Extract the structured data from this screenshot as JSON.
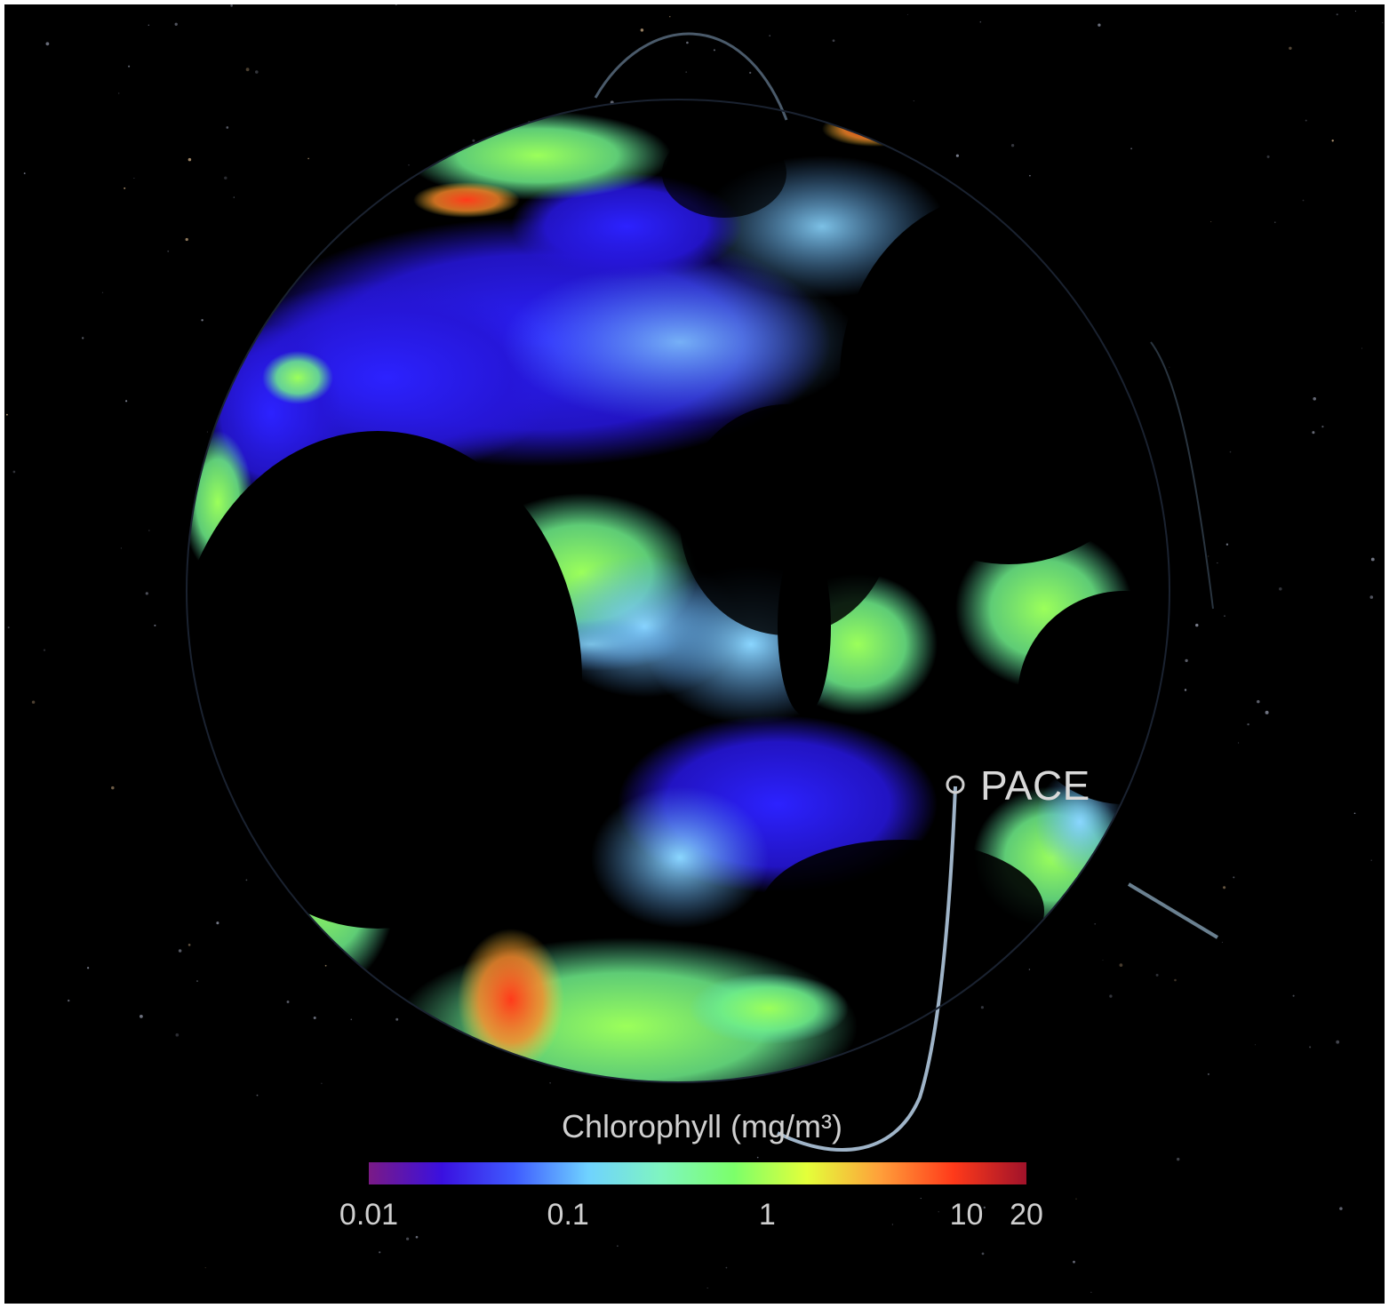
{
  "satellite": {
    "name": "PACE",
    "marker_icon": "satellite-ring-icon",
    "orbit_color": "#9fb4c8"
  },
  "legend": {
    "title": "Chlorophyll (mg/m³)",
    "scale": "log",
    "range": [
      0.01,
      20
    ],
    "ticks": [
      {
        "label": "0.01",
        "value": 0.01
      },
      {
        "label": "0.1",
        "value": 0.1
      },
      {
        "label": "1",
        "value": 1
      },
      {
        "label": "10",
        "value": 10
      },
      {
        "label": "20",
        "value": 20
      }
    ],
    "colormap": [
      "#7a1a86",
      "#3a10e0",
      "#3f5cff",
      "#6fd2ff",
      "#7ff5c0",
      "#7cff6a",
      "#e4ff3a",
      "#ff9f3a",
      "#ff3a1a",
      "#a0122a"
    ]
  },
  "background": {
    "space": "#000000",
    "land_and_clouds": "#000000"
  }
}
